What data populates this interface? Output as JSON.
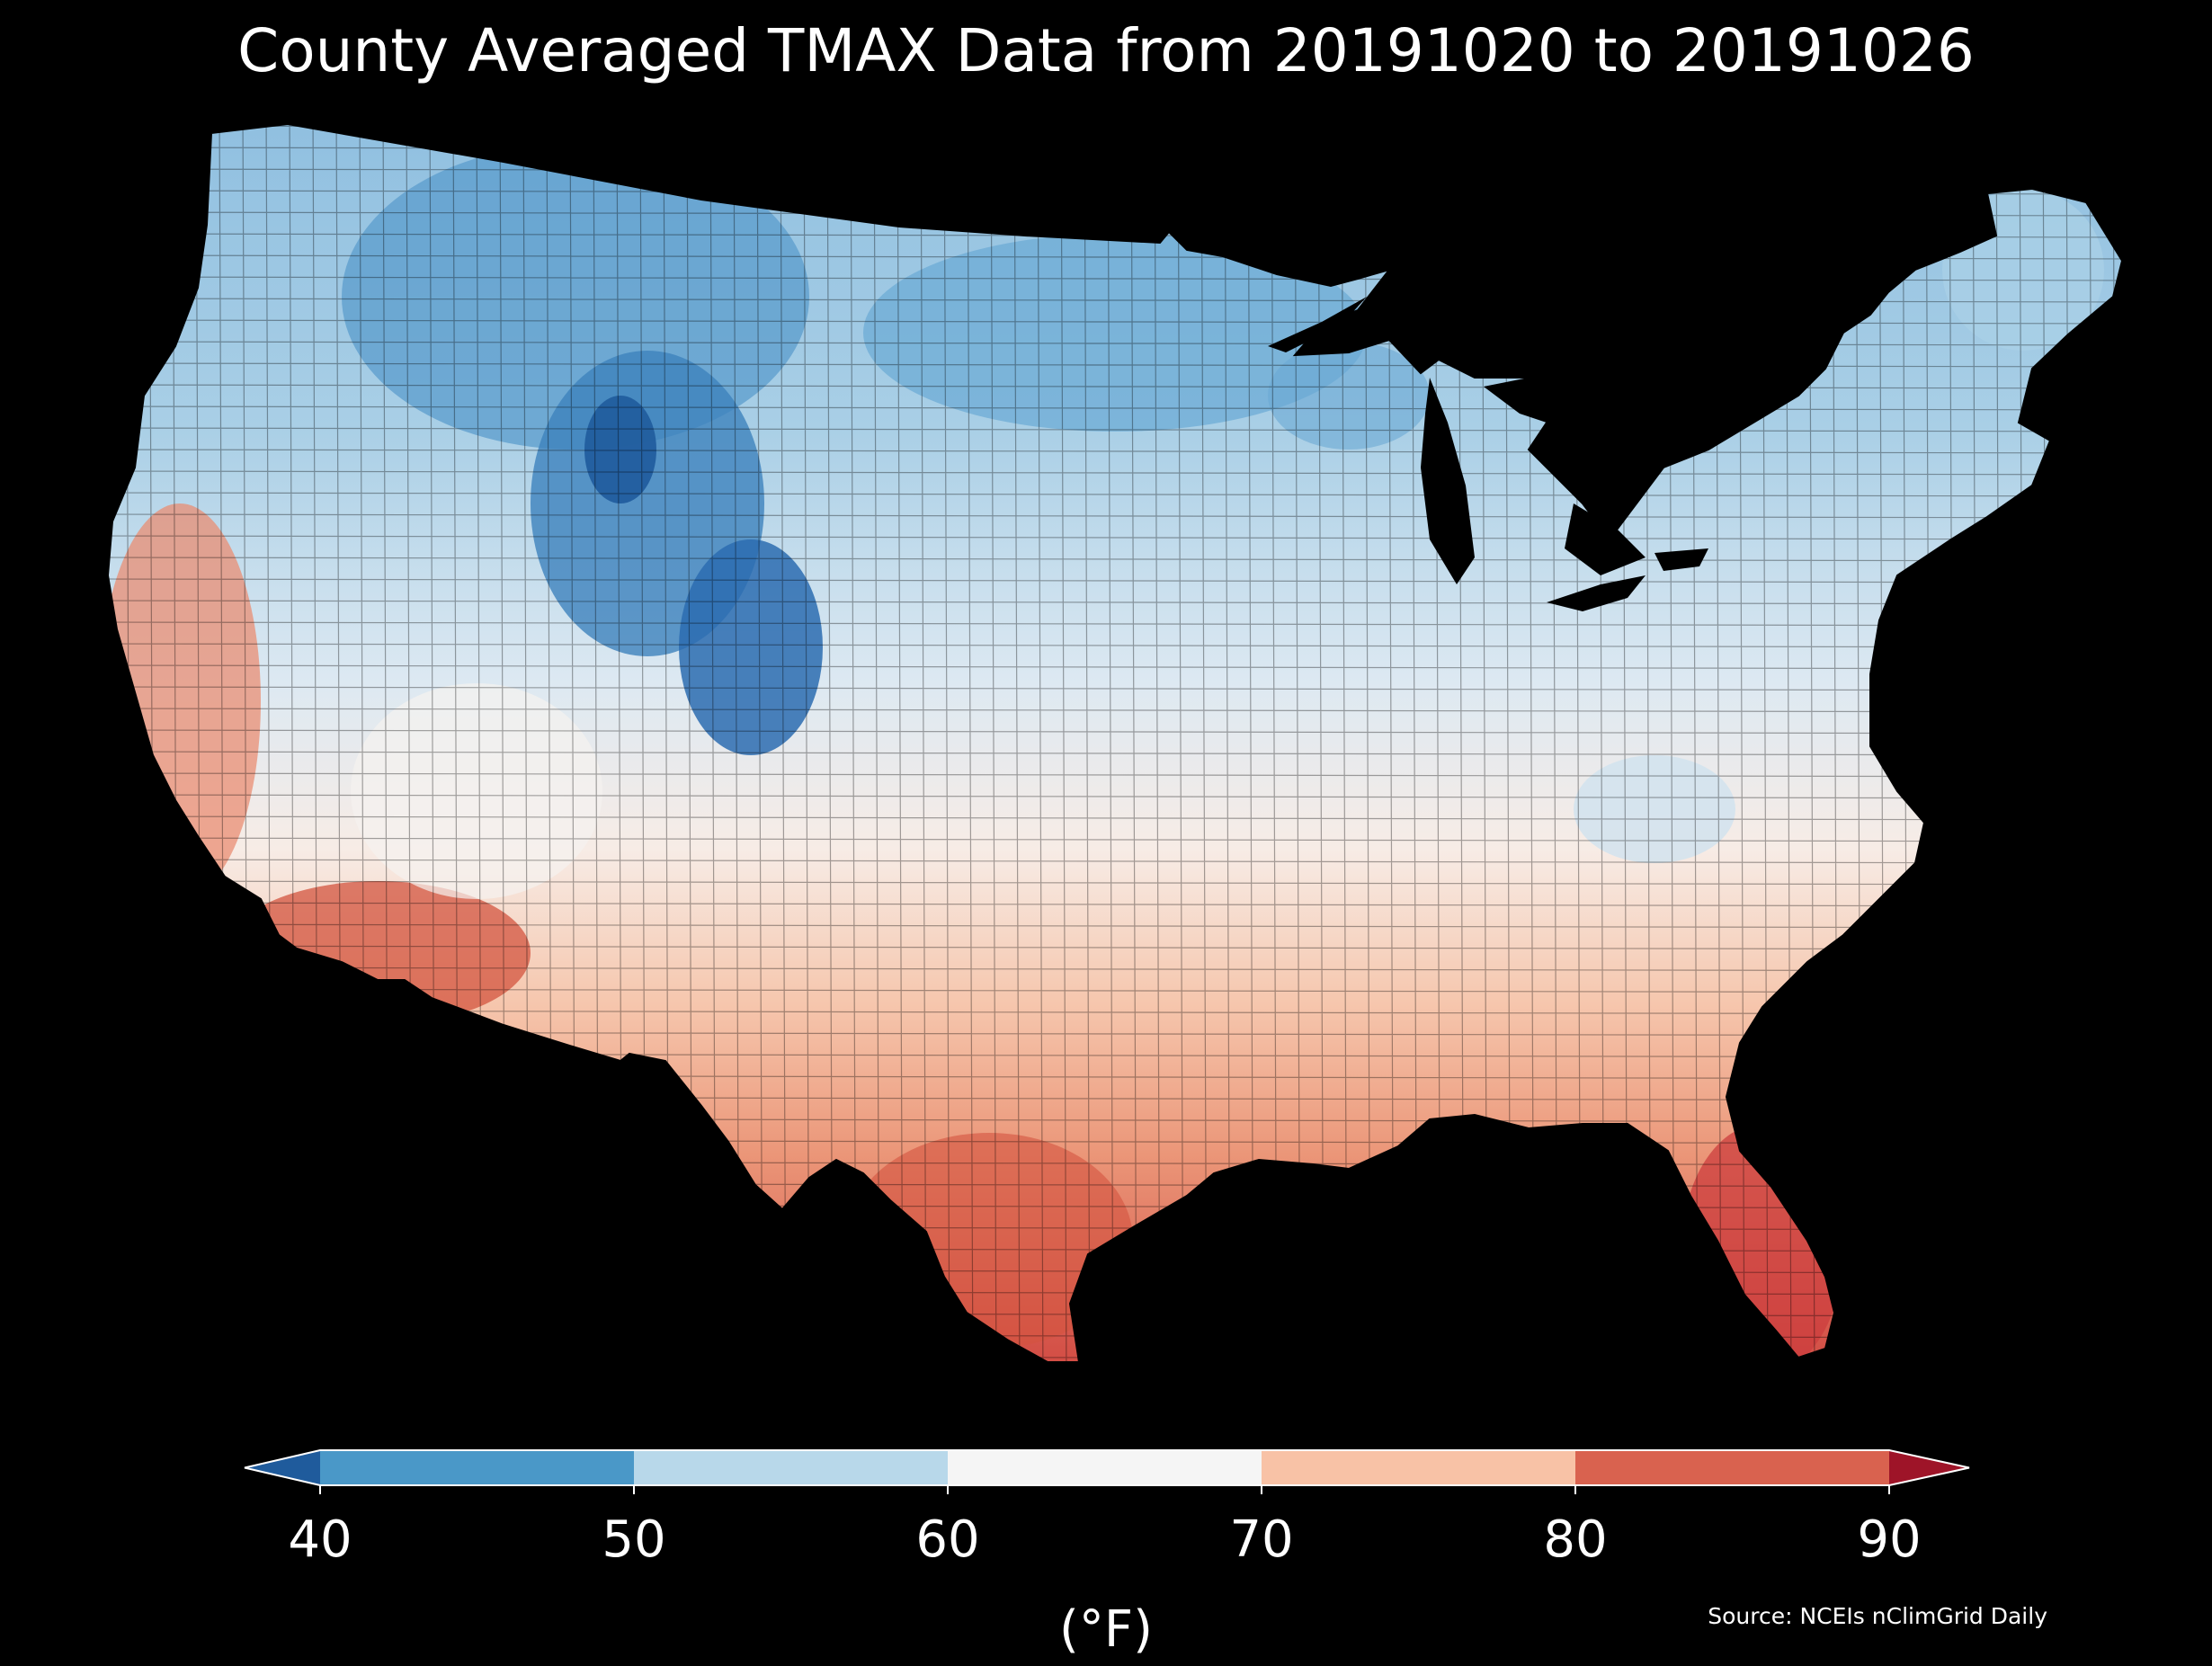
{
  "title": "County Averaged TMAX Data from 20191020 to 20191026",
  "colorbar": {
    "ticks": [
      "40",
      "50",
      "60",
      "70",
      "80",
      "90"
    ],
    "unit_label": "(°F)",
    "bins": [
      {
        "from": null,
        "to": 40,
        "color": "#1f5b9c"
      },
      {
        "from": 40,
        "to": 50,
        "color": "#4a98c8"
      },
      {
        "from": 50,
        "to": 60,
        "color": "#b8d8ea"
      },
      {
        "from": 60,
        "to": 70,
        "color": "#f5f5f5"
      },
      {
        "from": 70,
        "to": 80,
        "color": "#f8c2a6"
      },
      {
        "from": 80,
        "to": 90,
        "color": "#d9624f"
      },
      {
        "from": 90,
        "to": null,
        "color": "#9e1428"
      }
    ]
  },
  "source": "Source: NCEIs nClimGrid Daily",
  "map": {
    "region": "Contiguous United States, counties",
    "background_color": "#000000",
    "border_color": "#000000"
  }
}
